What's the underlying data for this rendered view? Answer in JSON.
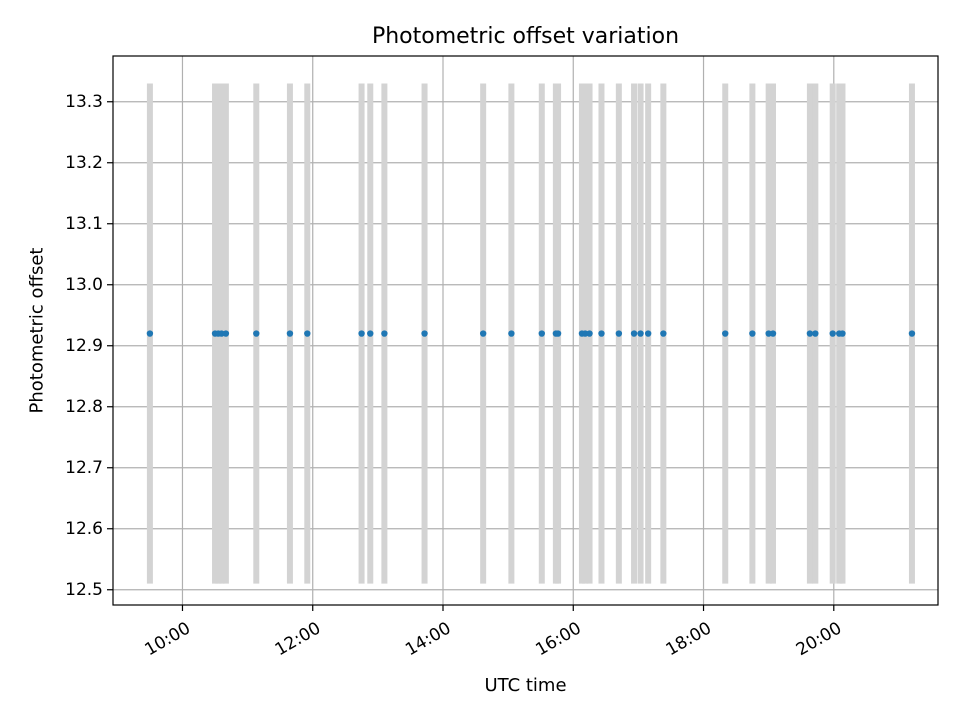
{
  "chart_data": {
    "type": "scatter",
    "title": "Photometric offset variation",
    "xlabel": "UTC time",
    "ylabel": "Photometric offset",
    "x_axis_type": "time",
    "xlim": [
      "08:56",
      "21:36"
    ],
    "ylim": [
      12.475,
      13.375
    ],
    "x_ticks": [
      "10:00",
      "12:00",
      "14:00",
      "16:00",
      "18:00",
      "20:00"
    ],
    "y_ticks": [
      12.5,
      12.6,
      12.7,
      12.8,
      12.9,
      13.0,
      13.1,
      13.2,
      13.3
    ],
    "y_tick_labels": [
      "12.5",
      "12.6",
      "12.7",
      "12.8",
      "12.9",
      "13.0",
      "13.1",
      "13.2",
      "13.3"
    ],
    "grid": true,
    "x_tick_label_rotation": 30,
    "series": [
      {
        "values": [
          {
            "x": "09:30",
            "y": 12.92
          },
          {
            "x": "10:30",
            "y": 12.92
          },
          {
            "x": "10:33",
            "y": 12.92
          },
          {
            "x": "10:36",
            "y": 12.92
          },
          {
            "x": "10:40",
            "y": 12.92
          },
          {
            "x": "11:08",
            "y": 12.92
          },
          {
            "x": "11:39",
            "y": 12.92
          },
          {
            "x": "11:55",
            "y": 12.92
          },
          {
            "x": "12:45",
            "y": 12.92
          },
          {
            "x": "12:53",
            "y": 12.92
          },
          {
            "x": "13:06",
            "y": 12.92
          },
          {
            "x": "13:43",
            "y": 12.92
          },
          {
            "x": "14:37",
            "y": 12.92
          },
          {
            "x": "15:03",
            "y": 12.92
          },
          {
            "x": "15:31",
            "y": 12.92
          },
          {
            "x": "15:44",
            "y": 12.92
          },
          {
            "x": "15:46",
            "y": 12.92
          },
          {
            "x": "16:08",
            "y": 12.92
          },
          {
            "x": "16:11",
            "y": 12.92
          },
          {
            "x": "16:15",
            "y": 12.92
          },
          {
            "x": "16:26",
            "y": 12.92
          },
          {
            "x": "16:42",
            "y": 12.92
          },
          {
            "x": "16:56",
            "y": 12.92
          },
          {
            "x": "17:02",
            "y": 12.92
          },
          {
            "x": "17:09",
            "y": 12.92
          },
          {
            "x": "17:23",
            "y": 12.92
          },
          {
            "x": "18:20",
            "y": 12.92
          },
          {
            "x": "18:45",
            "y": 12.92
          },
          {
            "x": "19:00",
            "y": 12.92
          },
          {
            "x": "19:04",
            "y": 12.92
          },
          {
            "x": "19:38",
            "y": 12.92
          },
          {
            "x": "19:43",
            "y": 12.92
          },
          {
            "x": "19:59",
            "y": 12.92
          },
          {
            "x": "20:05",
            "y": 12.92
          },
          {
            "x": "20:08",
            "y": 12.92
          },
          {
            "x": "21:12",
            "y": 12.92
          }
        ]
      }
    ],
    "vertical_bands": {
      "y_range": [
        12.51,
        13.33
      ],
      "times": [
        "09:30",
        "10:30",
        "10:33",
        "10:36",
        "10:40",
        "11:08",
        "11:39",
        "11:55",
        "12:45",
        "12:53",
        "13:06",
        "13:43",
        "14:37",
        "15:03",
        "15:31",
        "15:44",
        "15:46",
        "16:08",
        "16:11",
        "16:15",
        "16:26",
        "16:42",
        "16:56",
        "17:02",
        "17:09",
        "17:23",
        "18:20",
        "18:45",
        "19:00",
        "19:04",
        "19:38",
        "19:43",
        "19:59",
        "20:05",
        "20:08",
        "21:12"
      ]
    },
    "colors": {
      "point": "#1f77b4",
      "band": "#d3d3d3",
      "grid": "#b0b0b0",
      "axes": "#000000"
    }
  }
}
